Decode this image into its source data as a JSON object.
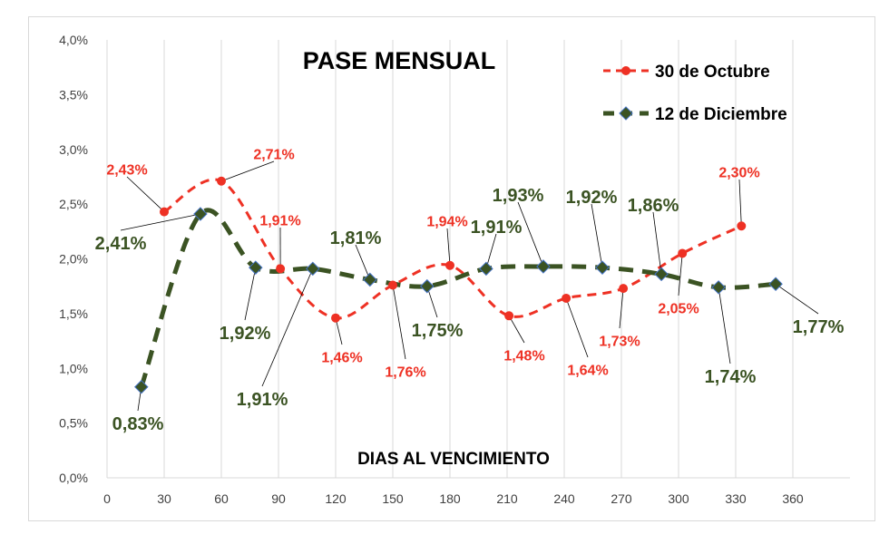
{
  "chart_data": {
    "type": "line",
    "title": "PASE MENSUAL",
    "xlabel": "DIAS AL VENCIMIENTO",
    "ylabel": "",
    "xlim": [
      0,
      390
    ],
    "ylim": [
      0,
      4.0
    ],
    "x_ticks": [
      "0",
      "30",
      "60",
      "90",
      "120",
      "150",
      "180",
      "210",
      "240",
      "270",
      "300",
      "330",
      "360"
    ],
    "y_ticks": [
      "0,0%",
      "0,5%",
      "1,0%",
      "1,5%",
      "2,0%",
      "2,5%",
      "3,0%",
      "3,5%",
      "4,0%"
    ],
    "grid": "vertical",
    "legend_placement": "top-right",
    "series": [
      {
        "name": "30 de Octubre",
        "color": "#ee3124",
        "marker": "circle",
        "smooth": true,
        "x": [
          30,
          60,
          91,
          120,
          150,
          180,
          211,
          241,
          271,
          302,
          333
        ],
        "y": [
          2.43,
          2.71,
          1.91,
          1.46,
          1.76,
          1.94,
          1.48,
          1.64,
          1.73,
          2.05,
          2.3
        ],
        "labels": [
          "2,43%",
          "2,71%",
          "1,91%",
          "1,46%",
          "1,76%",
          "1,94%",
          "1,48%",
          "1,64%",
          "1,73%",
          "2,05%",
          "2,30%"
        ]
      },
      {
        "name": "12 de Diciembre",
        "color": "#3b5323",
        "marker": "diamond",
        "smooth": true,
        "x": [
          18,
          49,
          78,
          108,
          138,
          168,
          199,
          229,
          260,
          291,
          321,
          351
        ],
        "y": [
          0.83,
          2.41,
          1.92,
          1.91,
          1.81,
          1.75,
          1.91,
          1.93,
          1.92,
          1.86,
          1.74,
          1.77
        ],
        "labels": [
          "0,83%",
          "2,41%",
          "1,92%",
          "1,91%",
          "1,81%",
          "1,75%",
          "1,91%",
          "1,93%",
          "1,92%",
          "1,86%",
          "1,74%",
          "1,77%"
        ]
      }
    ]
  }
}
